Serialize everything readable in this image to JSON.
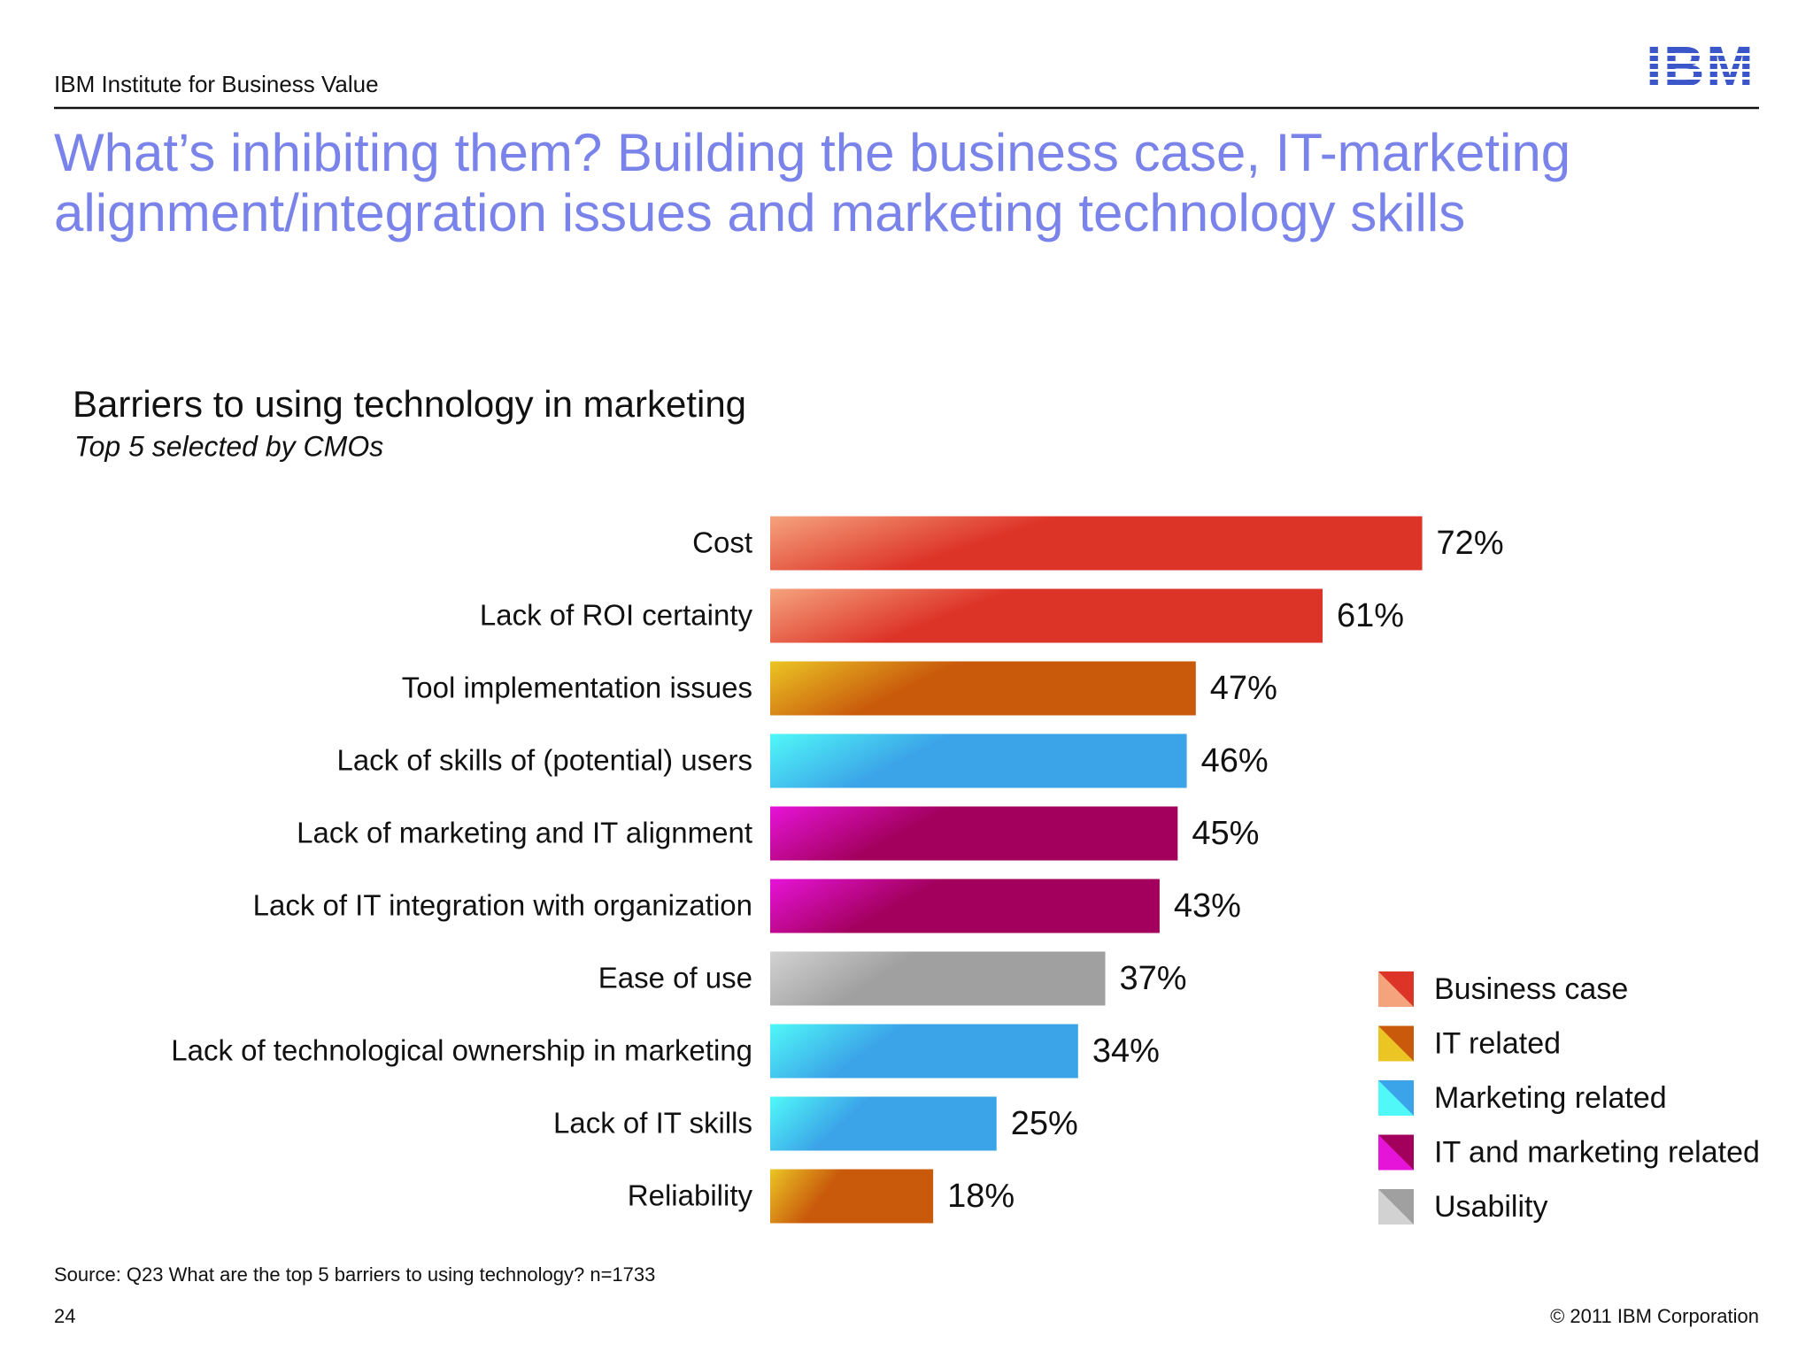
{
  "header": {
    "org": "IBM Institute for Business Value",
    "logo": "IBM",
    "title_lines": [
      "What’s inhibiting them? Building the business case, IT-marketing",
      "alignment/integration issues and marketing technology skills"
    ]
  },
  "chart_data": {
    "type": "bar",
    "orientation": "horizontal",
    "title": "Barriers to using technology in marketing",
    "subtitle": "Top 5 selected by CMOs",
    "categories": [
      "Cost",
      "Lack of ROI certainty",
      "Tool implementation issues",
      "Lack of skills of (potential) users",
      "Lack of marketing and IT alignment",
      "Lack of IT integration with organization",
      "Ease of use",
      "Lack of technological ownership in marketing",
      "Lack of IT skills",
      "Reliability"
    ],
    "series": [
      {
        "name": "Business case",
        "color": "#dd3428",
        "gradient": "#f5a37d",
        "values": [
          72,
          61,
          null,
          null,
          null,
          null,
          null,
          null,
          null,
          null
        ],
        "value_labels": [
          "72%",
          "61%",
          null,
          null,
          null,
          null,
          null,
          null,
          null,
          null
        ]
      },
      {
        "name": "IT related",
        "color": "#c95a0c",
        "gradient": "#ebc524",
        "values": [
          null,
          null,
          47,
          null,
          null,
          null,
          null,
          null,
          null,
          18
        ],
        "value_labels": [
          null,
          null,
          "47%",
          null,
          null,
          null,
          null,
          null,
          null,
          "18%"
        ]
      },
      {
        "name": "Marketing related",
        "color": "#3ba3e8",
        "gradient": "#50f8f8",
        "values": [
          null,
          null,
          null,
          46,
          null,
          null,
          null,
          34,
          25,
          null
        ],
        "value_labels": [
          null,
          null,
          null,
          "46%",
          null,
          null,
          null,
          "34%",
          "25%",
          null
        ]
      },
      {
        "name": "IT and marketing related",
        "color": "#a3005e",
        "gradient": "#e614d8",
        "values": [
          null,
          null,
          null,
          null,
          45,
          43,
          null,
          null,
          null,
          null
        ],
        "value_labels": [
          null,
          null,
          null,
          null,
          "45%",
          "43%",
          null,
          null,
          null,
          null
        ]
      },
      {
        "name": "Usability",
        "color": "#a0a0a0",
        "gradient": "#d2d2d2",
        "values": [
          null,
          null,
          null,
          null,
          null,
          null,
          37,
          null,
          null,
          null
        ],
        "value_labels": [
          null,
          null,
          null,
          null,
          null,
          null,
          "37%",
          null,
          null,
          null
        ]
      }
    ],
    "legend": "right"
  },
  "footer": {
    "source": "Source:  Q23  What are the top 5 barriers to using technology? n=1733",
    "page": "24",
    "copyright": "© 2011 IBM Corporation"
  }
}
